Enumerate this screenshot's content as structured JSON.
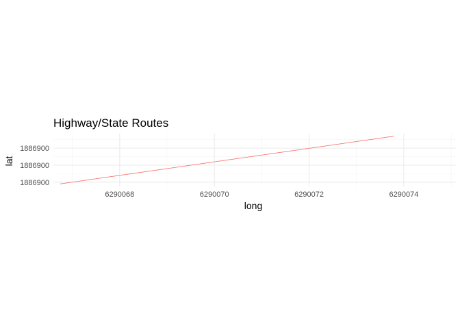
{
  "chart_data": {
    "type": "line",
    "title": "Highway/State Routes",
    "xlabel": "long",
    "ylabel": "lat",
    "xlim": [
      6290066.6,
      6290075.1
    ],
    "ylim": [
      1886899.75,
      1886900.37
    ],
    "x_ticks": [
      {
        "value": 6290068,
        "label": "6290068"
      },
      {
        "value": 6290070,
        "label": "6290070"
      },
      {
        "value": 6290072,
        "label": "6290072"
      },
      {
        "value": 6290074,
        "label": "6290074"
      }
    ],
    "x_minor_ticks": [
      6290067,
      6290069,
      6290071,
      6290073,
      6290075
    ],
    "y_ticks": [
      {
        "value": 1886899.8,
        "label": "1886900"
      },
      {
        "value": 1886900.0,
        "label": "1886900"
      },
      {
        "value": 1886900.2,
        "label": "1886900"
      }
    ],
    "y_minor_ticks": [
      1886899.9,
      1886900.1,
      1886900.3
    ],
    "series": [
      {
        "color": "#F8766D",
        "x": [
          6290066.74,
          6290073.79
        ],
        "y": [
          1886899.78,
          1886900.34
        ]
      }
    ],
    "grid": true,
    "legend": "none"
  }
}
